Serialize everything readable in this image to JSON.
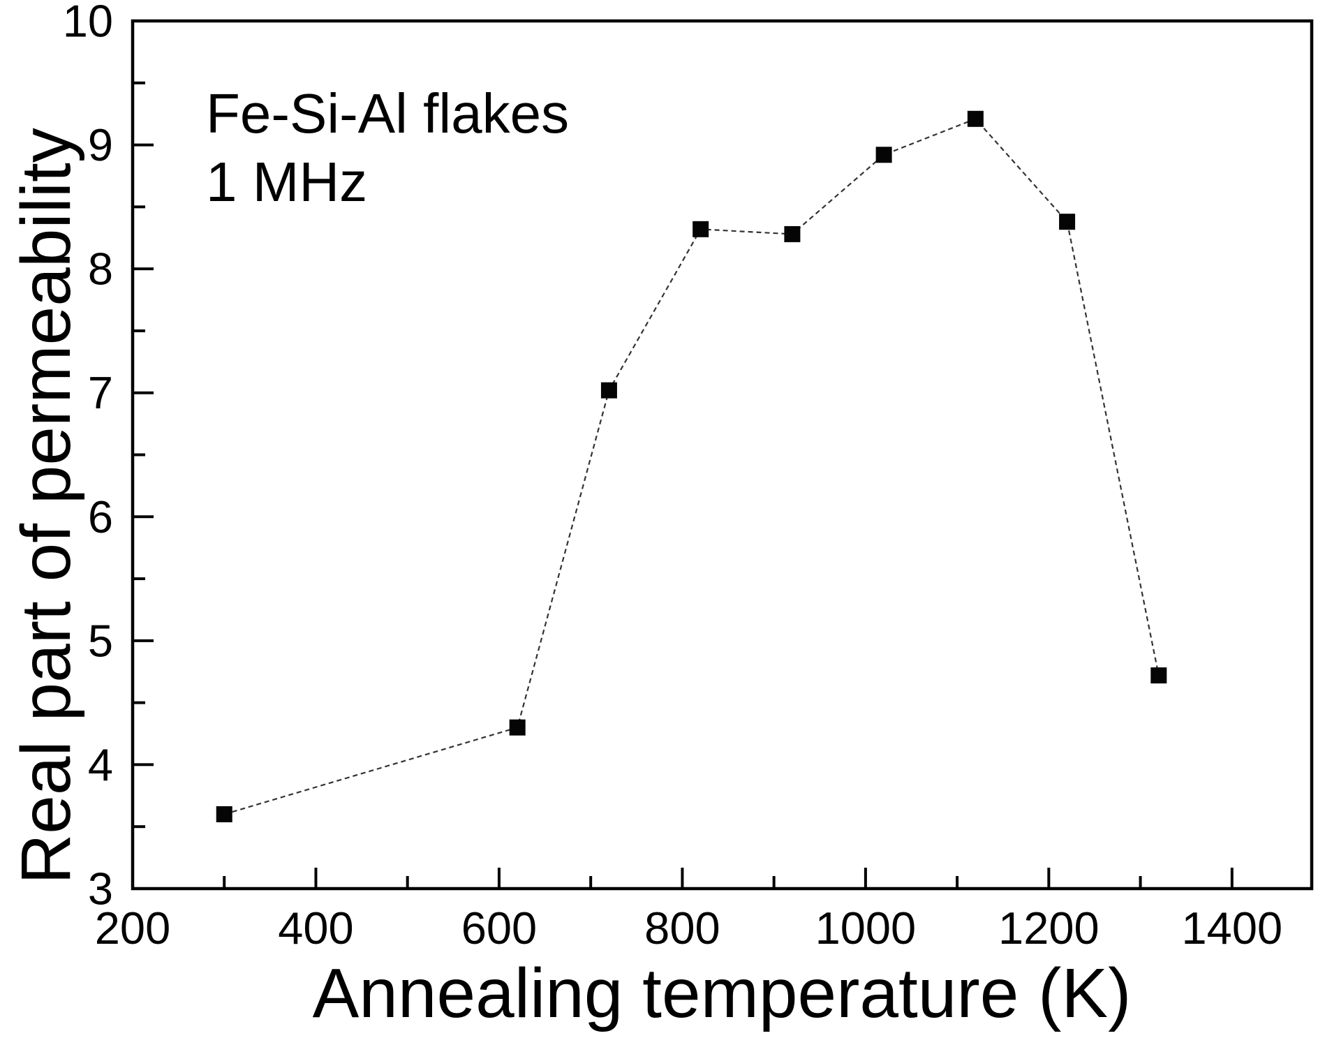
{
  "chart_data": {
    "type": "line",
    "title": "",
    "annotation": [
      "Fe-Si-Al flakes",
      "1 MHz"
    ],
    "xlabel": "Annealing temperature (K)",
    "ylabel": "Real part of permeability",
    "x": [
      300,
      620,
      720,
      820,
      920,
      1020,
      1120,
      1220,
      1320
    ],
    "y": [
      3.6,
      4.3,
      7.02,
      8.32,
      8.28,
      8.92,
      9.21,
      8.38,
      4.72
    ],
    "series_name": "Real part of permeability at 1 MHz",
    "marker": "filled-square",
    "line_style": "thin-dashed",
    "xlim": [
      200,
      1487
    ],
    "ylim": [
      3,
      10
    ],
    "x_major_ticks": [
      200,
      400,
      600,
      800,
      1000,
      1200,
      1400
    ],
    "x_minor_ticks": [
      300,
      500,
      700,
      900,
      1100,
      1300
    ],
    "y_major_ticks": [
      3,
      4,
      5,
      6,
      7,
      8,
      9,
      10
    ],
    "y_minor_ticks": [
      3.5,
      4.5,
      5.5,
      6.5,
      7.5,
      8.5,
      9.5
    ],
    "grid": "off",
    "legend": "none",
    "colors": {
      "background": "#ffffff",
      "axis": "#000000",
      "marker": "#050505",
      "line": "#333333",
      "text": "#000000"
    }
  }
}
